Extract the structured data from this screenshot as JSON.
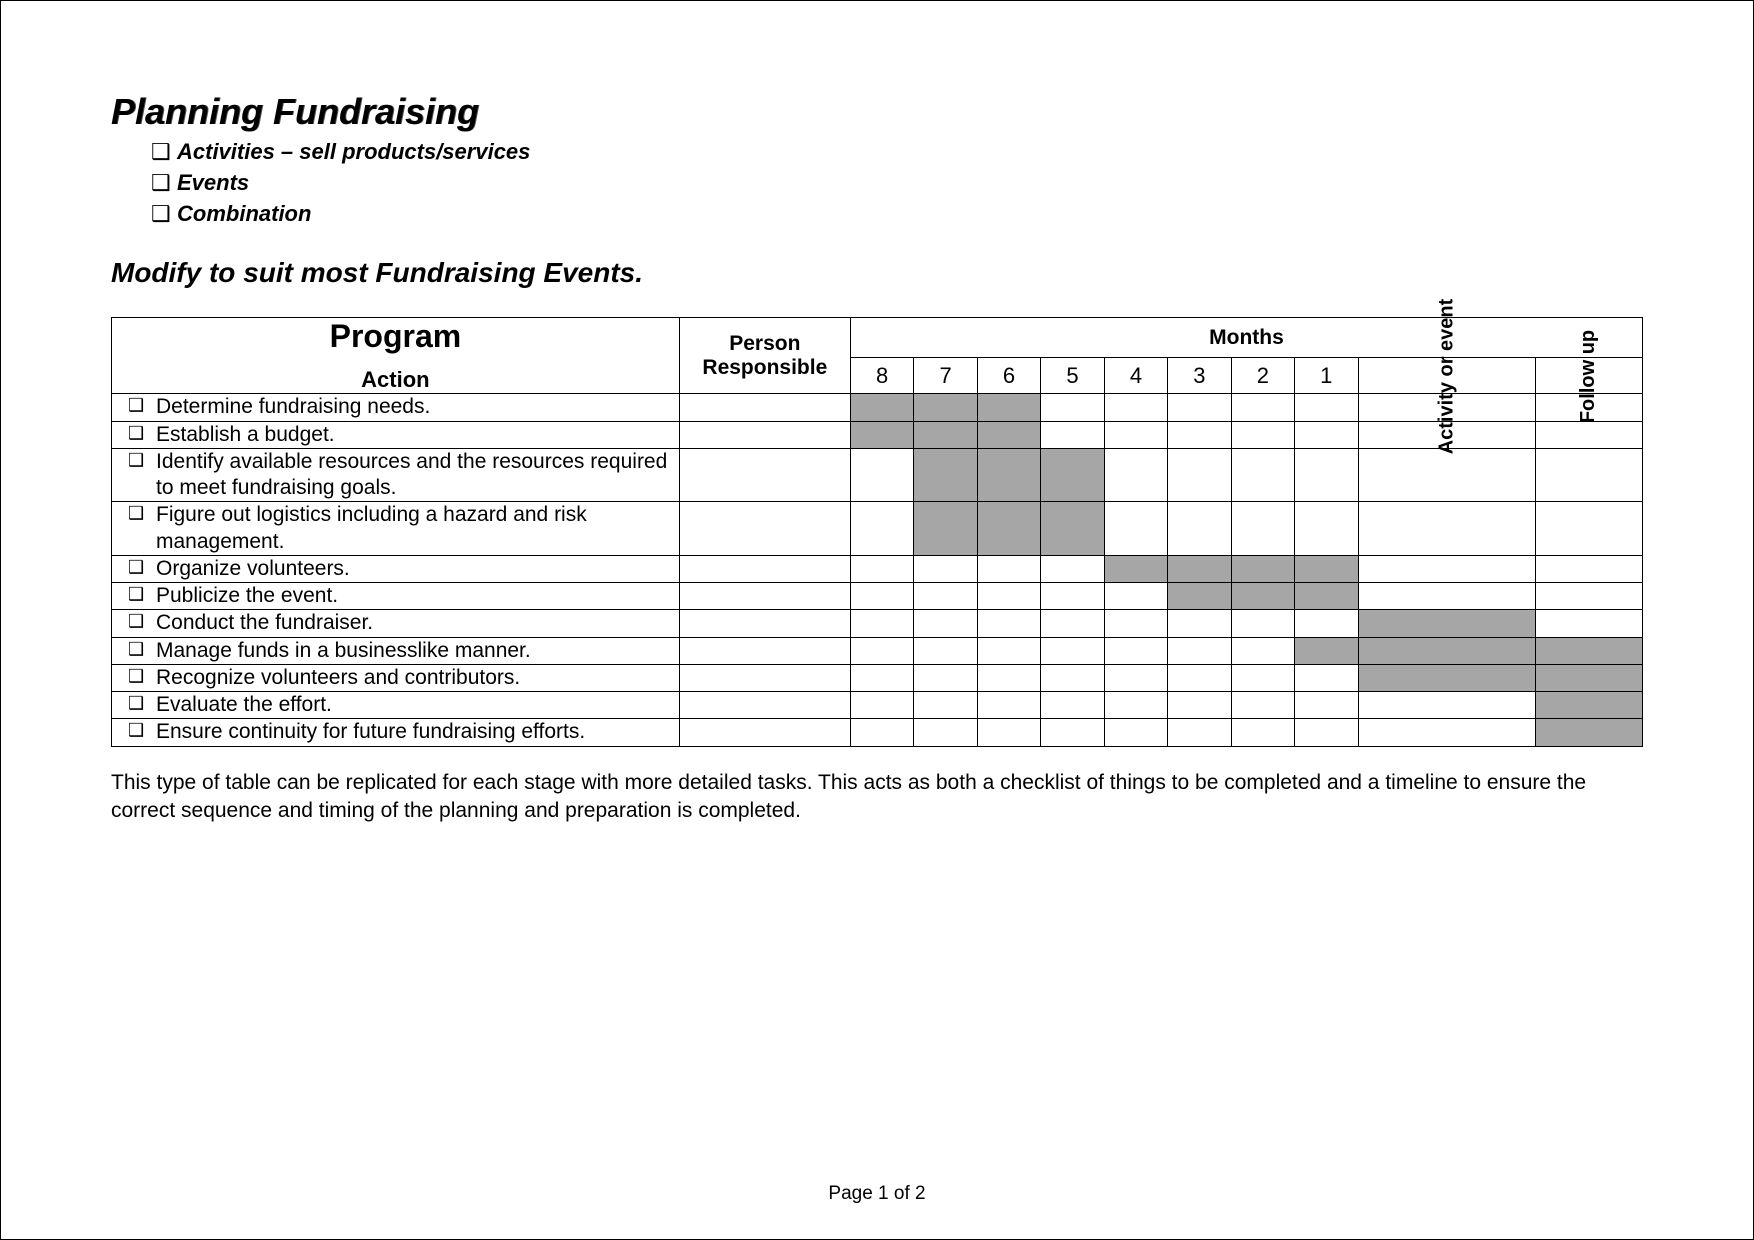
{
  "title": "Planning Fundraising",
  "top_bullets": [
    "Activities – sell products/services",
    "Events",
    "Combination"
  ],
  "subtitle": "Modify to suit most Fundraising Events.",
  "headers": {
    "program_title": "Program",
    "program_action": "Action",
    "person": "Person Responsible",
    "months": "Months",
    "month_nums": [
      "8",
      "7",
      "6",
      "5",
      "4",
      "3",
      "2",
      "1"
    ],
    "activity": "Activity or event",
    "followup": "Follow up"
  },
  "rows": [
    {
      "text": "Determine fundraising needs.",
      "shade": [
        1,
        1,
        1,
        0,
        0,
        0,
        0,
        0,
        0,
        0
      ]
    },
    {
      "text": "Establish a budget.",
      "shade": [
        1,
        1,
        1,
        0,
        0,
        0,
        0,
        0,
        0,
        0
      ]
    },
    {
      "text": "Identify available resources and the resources required to meet fundraising goals.",
      "shade": [
        0,
        1,
        1,
        1,
        0,
        0,
        0,
        0,
        0,
        0
      ]
    },
    {
      "text": "Figure out logistics including a hazard and risk management.",
      "shade": [
        0,
        1,
        1,
        1,
        0,
        0,
        0,
        0,
        0,
        0
      ]
    },
    {
      "text": "Organize volunteers.",
      "shade": [
        0,
        0,
        0,
        0,
        1,
        1,
        1,
        1,
        0,
        0
      ]
    },
    {
      "text": "Publicize the event.",
      "shade": [
        0,
        0,
        0,
        0,
        0,
        1,
        1,
        1,
        0,
        0
      ]
    },
    {
      "text": "Conduct the fundraiser.",
      "shade": [
        0,
        0,
        0,
        0,
        0,
        0,
        0,
        0,
        1,
        0
      ]
    },
    {
      "text": "Manage funds in a businesslike manner.",
      "shade": [
        0,
        0,
        0,
        0,
        0,
        0,
        0,
        1,
        1,
        1
      ]
    },
    {
      "text": "Recognize volunteers and contributors.",
      "shade": [
        0,
        0,
        0,
        0,
        0,
        0,
        0,
        0,
        1,
        1
      ]
    },
    {
      "text": "Evaluate the effort.",
      "shade": [
        0,
        0,
        0,
        0,
        0,
        0,
        0,
        0,
        0,
        1
      ]
    },
    {
      "text": "Ensure continuity for future fundraising efforts.",
      "shade": [
        0,
        0,
        0,
        0,
        0,
        0,
        0,
        0,
        0,
        1
      ]
    }
  ],
  "footnote": "This type of table can be replicated for each stage with more detailed tasks.  This acts as both a checklist of things to be completed and a timeline to ensure the correct sequence and timing of the planning and preparation is completed.",
  "page_label": "Page 1 of 2",
  "checkbox_glyph": "❑",
  "colors": {
    "shade": "#a6a6a6",
    "border": "#000000",
    "text": "#000000",
    "background": "#ffffff"
  }
}
